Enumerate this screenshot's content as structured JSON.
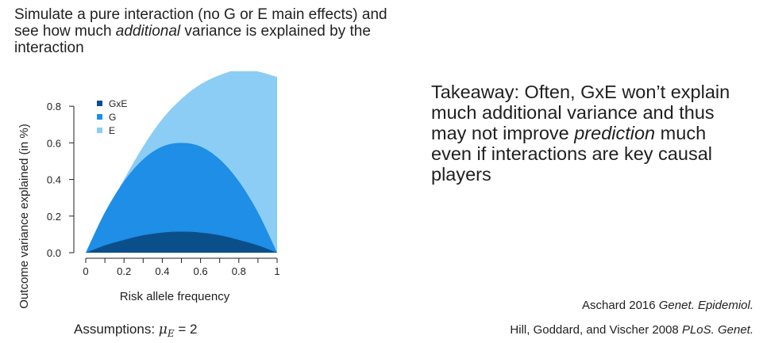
{
  "intro": {
    "part1": "Simulate a pure interaction (no G or E main effects) and see how much ",
    "emph": "additional",
    "part2": " variance is explained by the interaction"
  },
  "takeaway": {
    "bold": "Takeaway:",
    "part1": " Often, GxE won’t explain much additional variance and thus may not improve ",
    "emph": "prediction",
    "part2": " much even if interactions are key causal players"
  },
  "assumptions": {
    "label": "Assumptions: ",
    "symbol": "μ",
    "subscript": "E",
    "value": " = 2"
  },
  "references": [
    {
      "text": "Aschard 2016 ",
      "journal": "Genet. Epidemiol."
    },
    {
      "text": "Hill, Goddard, and Vischer 2008 ",
      "journal": "PLoS. Genet."
    }
  ],
  "chart_data": {
    "type": "area",
    "xlabel": "Risk allele frequency",
    "ylabel": "Outcome variance explained (in %)",
    "xlim": [
      0,
      1
    ],
    "ylim": [
      0,
      0.9
    ],
    "xticks": [
      0,
      0.2,
      0.4,
      0.6,
      0.8,
      1
    ],
    "xtick_labels": [
      "0",
      "0.2",
      "0.4",
      "0.6",
      "0.8",
      "1"
    ],
    "yticks": [
      0,
      0.2,
      0.4,
      0.6,
      0.8
    ],
    "ytick_labels": [
      "0.0",
      "0.2",
      "0.4",
      "0.6",
      "0.8"
    ],
    "x": [
      0,
      0.1,
      0.2,
      0.3,
      0.4,
      0.5,
      0.6,
      0.7,
      0.8,
      0.9,
      1
    ],
    "series": [
      {
        "name": "GxE",
        "color": "#0b4f8a",
        "values": [
          0,
          0.04,
          0.07,
          0.095,
          0.11,
          0.115,
          0.11,
          0.095,
          0.07,
          0.04,
          0
        ]
      },
      {
        "name": "G",
        "color": "#1e8ee6",
        "values": [
          0,
          0.22,
          0.39,
          0.51,
          0.58,
          0.6,
          0.58,
          0.51,
          0.39,
          0.22,
          0
        ]
      },
      {
        "name": "E",
        "color": "#8ccdf5",
        "values": [
          0,
          0.2,
          0.4,
          0.58,
          0.73,
          0.84,
          0.92,
          0.97,
          1.0,
          0.99,
          0.96
        ]
      }
    ],
    "legend_position": "top-left",
    "grid": false
  }
}
